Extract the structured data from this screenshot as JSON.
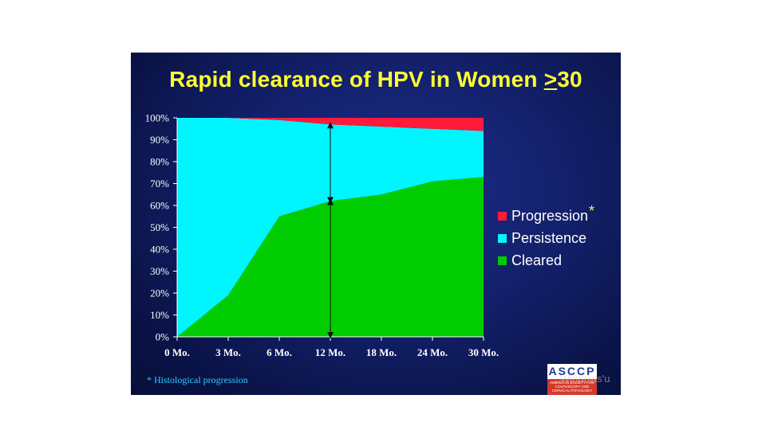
{
  "slide": {
    "title_prefix": "Rapid clearance of HPV in Women ",
    "title_ge": ">",
    "title_suffix": "30",
    "footnote": "* Histological progression",
    "logo_text": "ASCCP",
    "logo_subtext": "AMERICAN SOCIETY FOR COLPOSCOPY AND CERVICAL PATHOLOGY",
    "watermark": "Windows'u"
  },
  "colors": {
    "background": "#0d1a5c",
    "title": "#ffff33",
    "progression": "#ff1a3c",
    "persistence": "#00f5ff",
    "cleared": "#00cc00",
    "footnote": "#33ccff"
  },
  "chart_data": {
    "type": "area",
    "stacked": true,
    "categories": [
      "0 Mo.",
      "3 Mo.",
      "6 Mo.",
      "12 Mo.",
      "18 Mo.",
      "24 Mo.",
      "30 Mo."
    ],
    "series": [
      {
        "name": "Cleared",
        "values": [
          0,
          19,
          55,
          62,
          65,
          71,
          73
        ]
      },
      {
        "name": "Persistence",
        "values": [
          100,
          81,
          44,
          35,
          31,
          24,
          21
        ]
      },
      {
        "name": "Progression",
        "values": [
          0,
          0,
          1,
          3,
          4,
          5,
          6
        ]
      }
    ],
    "legend_order": [
      "Progression",
      "Persistence",
      "Cleared"
    ],
    "legend_marker": "*",
    "legend_marker_series": "Progression",
    "yticks": [
      "0%",
      "10%",
      "20%",
      "30%",
      "40%",
      "50%",
      "60%",
      "70%",
      "80%",
      "90%",
      "100%"
    ],
    "ylim": [
      0,
      100
    ],
    "legend_position": "right",
    "grid": false,
    "annotation": {
      "type": "double-arrows",
      "at": "12 Mo."
    }
  }
}
